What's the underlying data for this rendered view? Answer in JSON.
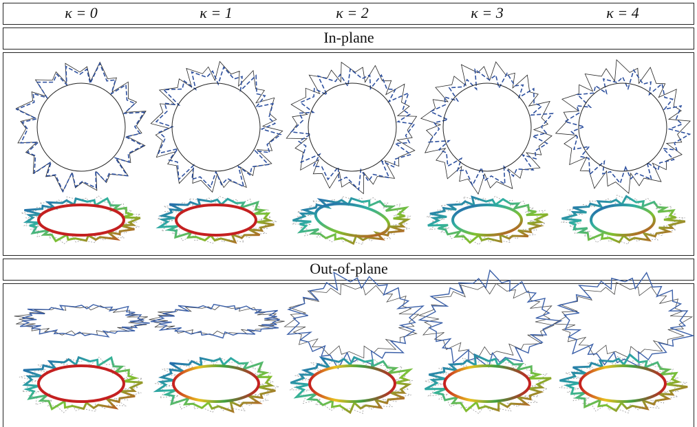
{
  "header": {
    "columns": [
      "κ = 0",
      "κ = 1",
      "κ = 2",
      "κ = 3",
      "κ = 4"
    ]
  },
  "sections": [
    {
      "title": "In-plane"
    },
    {
      "title": "Out-of-plane"
    }
  ]
}
